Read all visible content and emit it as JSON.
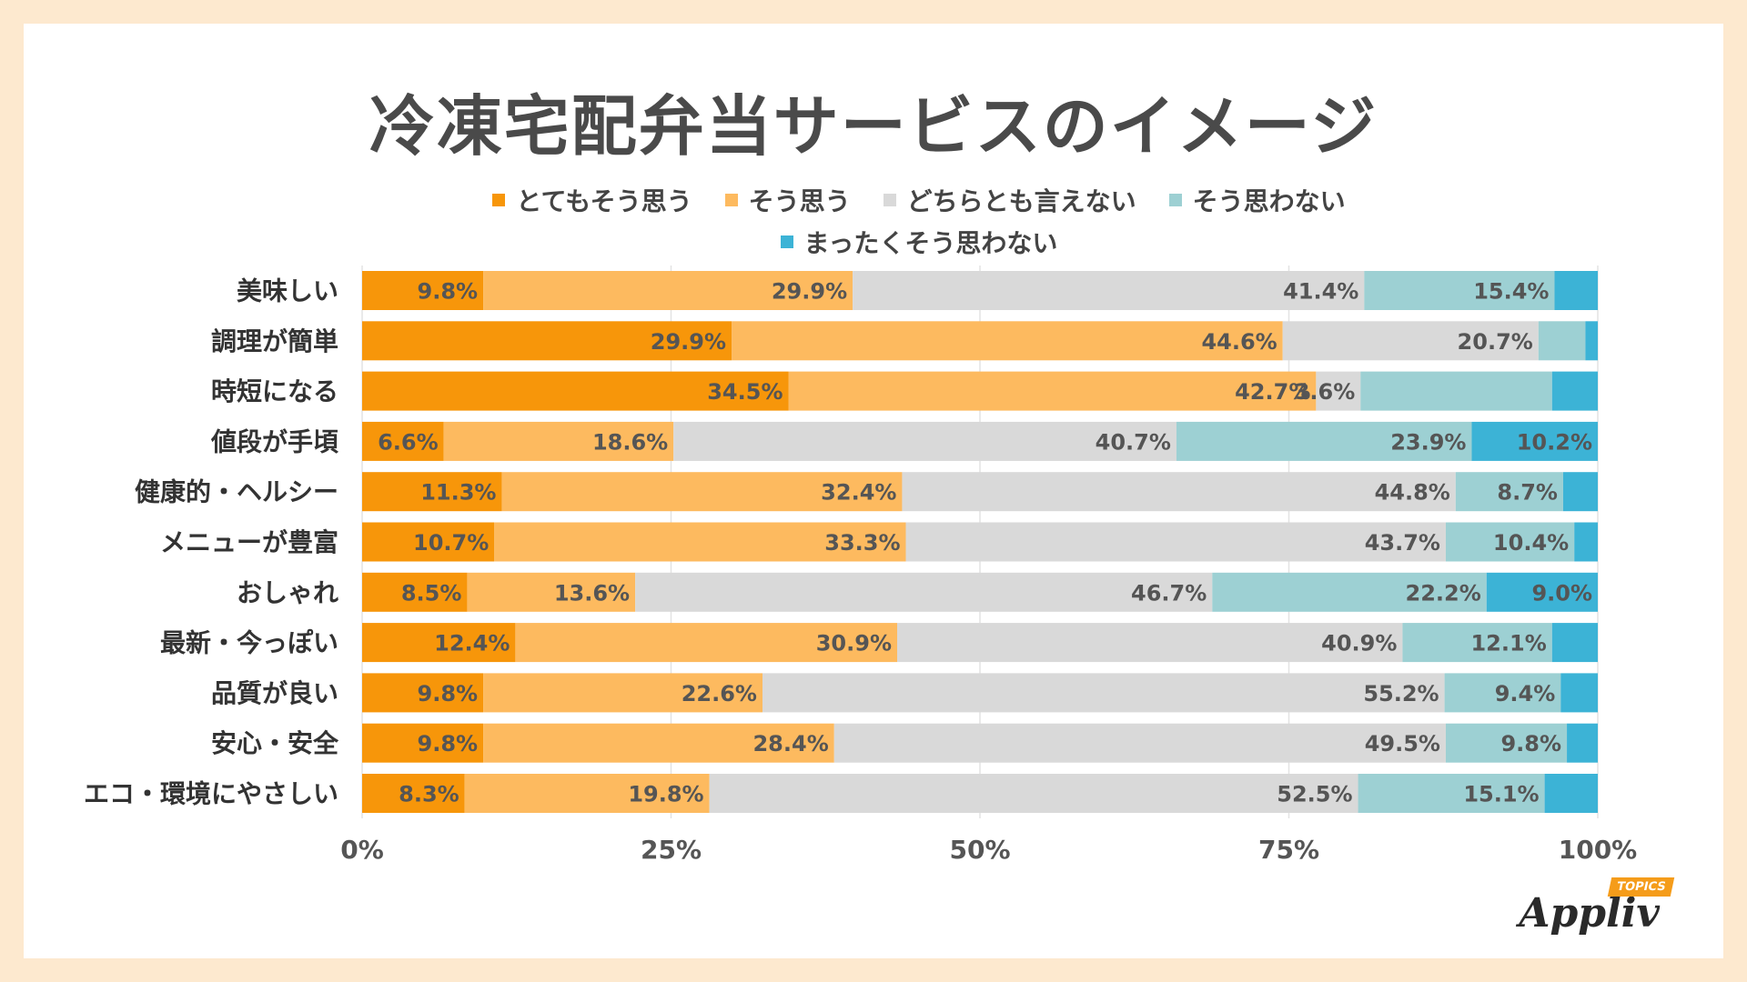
{
  "chart_data": {
    "type": "bar",
    "orientation": "horizontal",
    "stacked": true,
    "title": "冷凍宅配弁当サービスのイメージ",
    "categories": [
      "美味しい",
      "調理が簡単",
      "時短になる",
      "値段が手頃",
      "健康的・ヘルシー",
      "メニューが豊富",
      "おしゃれ",
      "最新・今っぽい",
      "品質が良い",
      "安心・安全",
      "エコ・環境にやさしい"
    ],
    "series": [
      {
        "name": "とてもそう思う",
        "color": "#f7960a",
        "values": [
          9.8,
          29.9,
          34.5,
          6.6,
          11.3,
          10.7,
          8.5,
          12.4,
          9.8,
          9.8,
          8.3
        ]
      },
      {
        "name": "そう思う",
        "color": "#fdba5f",
        "values": [
          29.9,
          44.6,
          42.7,
          18.6,
          32.4,
          33.3,
          13.6,
          30.9,
          22.6,
          28.4,
          19.8
        ]
      },
      {
        "name": "どちらとも言えない",
        "color": "#d9d9d9",
        "values": [
          41.4,
          20.7,
          3.6,
          40.7,
          44.8,
          43.7,
          46.7,
          40.9,
          55.2,
          49.5,
          52.5
        ]
      },
      {
        "name": "そう思わない",
        "color": "#9dd0d3",
        "values": [
          15.4,
          3.8,
          15.5,
          23.9,
          8.7,
          10.4,
          22.2,
          12.1,
          9.4,
          9.8,
          15.1
        ]
      },
      {
        "name": "まったくそう思わない",
        "color": "#3cb3d6",
        "values": [
          3.5,
          1.0,
          3.7,
          10.2,
          2.8,
          1.9,
          9.0,
          3.7,
          3.0,
          2.5,
          4.3
        ]
      }
    ],
    "labels": [
      [
        "9.8%",
        "29.9%",
        "41.4%",
        "15.4%",
        ""
      ],
      [
        "29.9%",
        "44.6%",
        "20.7%",
        "",
        ""
      ],
      [
        "34.5%",
        "42.7%",
        "3.6%",
        "",
        ""
      ],
      [
        "6.6%",
        "18.6%",
        "40.7%",
        "23.9%",
        "10.2%"
      ],
      [
        "11.3%",
        "32.4%",
        "44.8%",
        "8.7%",
        ""
      ],
      [
        "10.7%",
        "33.3%",
        "43.7%",
        "10.4%",
        ""
      ],
      [
        "8.5%",
        "13.6%",
        "46.7%",
        "22.2%",
        "9.0%"
      ],
      [
        "12.4%",
        "30.9%",
        "40.9%",
        "12.1%",
        ""
      ],
      [
        "9.8%",
        "22.6%",
        "55.2%",
        "9.4%",
        ""
      ],
      [
        "9.8%",
        "28.4%",
        "49.5%",
        "9.8%",
        ""
      ],
      [
        "8.3%",
        "19.8%",
        "52.5%",
        "15.1%",
        ""
      ]
    ],
    "x_ticks": [
      0,
      25,
      50,
      75,
      100
    ],
    "x_tick_labels": [
      "0%",
      "25%",
      "50%",
      "75%",
      "100%"
    ],
    "xlim": [
      0,
      100
    ]
  },
  "logo": {
    "text": "Appliv",
    "badge": "TOPICS"
  }
}
